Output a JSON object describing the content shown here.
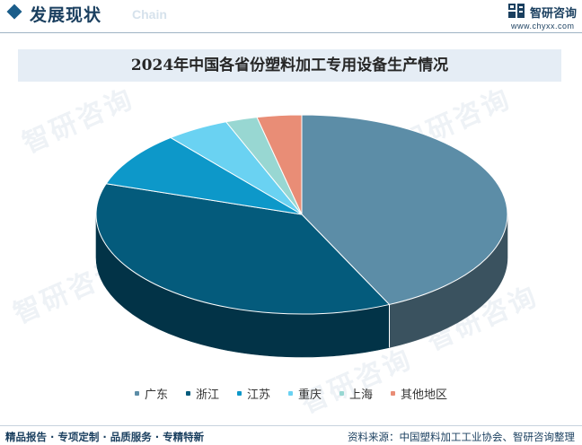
{
  "header": {
    "title": "发展现状",
    "subtitle": "Chain",
    "brand_name": "智研咨询",
    "brand_url": "www.chyxx.com"
  },
  "watermark": {
    "text": "智研咨询"
  },
  "chart_data": {
    "type": "pie",
    "title": "2024年中国各省份塑料加工专用设备生产情况",
    "legend_position": "bottom",
    "grid": false,
    "categories": [
      "广东",
      "浙江",
      "江苏",
      "重庆",
      "上海",
      "其他地区"
    ],
    "values": [
      43,
      37,
      9,
      5,
      2.5,
      3.5
    ],
    "colors": [
      "#5c8da7",
      "#045b7c",
      "#0d98c9",
      "#6ad2f2",
      "#98d7d2",
      "#e98d76"
    ],
    "side_colors": [
      "#3a525f",
      "#023347",
      "#0a6c8f",
      "#4fa7c2",
      "#74aaa6",
      "#b56651"
    ]
  },
  "footer": {
    "left": "精品报告 · 专项定制 · 品质服务 · 专精特新",
    "right": "资料来源：中国塑料加工工业协会、智研咨询整理"
  }
}
